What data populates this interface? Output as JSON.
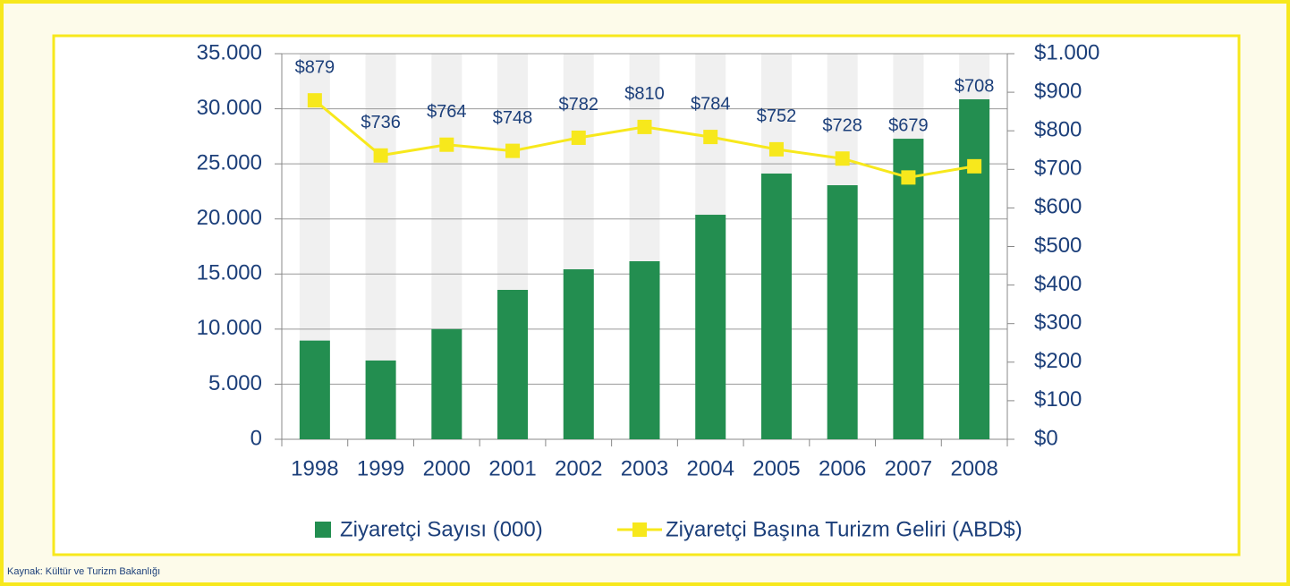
{
  "chart_data": {
    "type": "bar_line",
    "categories": [
      "1998",
      "1999",
      "2000",
      "2001",
      "2002",
      "2003",
      "2004",
      "2005",
      "2006",
      "2007",
      "2008"
    ],
    "series": [
      {
        "name": "Ziyaretçi Sayısı (000)",
        "color": "#238e50",
        "type": "bar",
        "values": [
          8960,
          7150,
          10000,
          13560,
          15430,
          16160,
          20380,
          24120,
          23060,
          27280,
          30860
        ]
      },
      {
        "name": "Ziyaretçi Başına Turizm Geliri (ABD$)",
        "color": "#f7e81c",
        "type": "line",
        "axis": "y2",
        "values": [
          879,
          736,
          764,
          748,
          782,
          810,
          784,
          752,
          728,
          679,
          708
        ],
        "value_labels": [
          "$879",
          "$736",
          "$764",
          "$748",
          "$782",
          "$810",
          "$784",
          "$752",
          "$728",
          "$679",
          "$708"
        ]
      }
    ],
    "ylim": [
      0,
      35000
    ],
    "yticks": [
      0,
      {
        "value": 5000,
        "label": "5.000"
      },
      {
        "value": 10000,
        "label": "10.000"
      },
      {
        "value": 15000,
        "label": "15.000"
      },
      {
        "value": 20000,
        "label": "20.000"
      },
      {
        "value": 25000,
        "label": "25.000"
      },
      {
        "value": 30000,
        "label": "30.000"
      },
      {
        "value": 35000,
        "label": "35.000"
      }
    ],
    "y2lim": [
      0,
      1000
    ],
    "y2ticks": [
      {
        "value": 0,
        "label": "$0"
      },
      {
        "value": 100,
        "label": "$100"
      },
      {
        "value": 200,
        "label": "$200"
      },
      {
        "value": 300,
        "label": "$300"
      },
      {
        "value": 400,
        "label": "$400"
      },
      {
        "value": 500,
        "label": "$500"
      },
      {
        "value": 600,
        "label": "$600"
      },
      {
        "value": 700,
        "label": "$700"
      },
      {
        "value": 800,
        "label": "$800"
      },
      {
        "value": 900,
        "label": "$900"
      },
      {
        "value": 1000,
        "label": "$1.000"
      }
    ],
    "grid": true,
    "source": "Kaynak: Kültür ve Turizm Bakanlığı"
  }
}
